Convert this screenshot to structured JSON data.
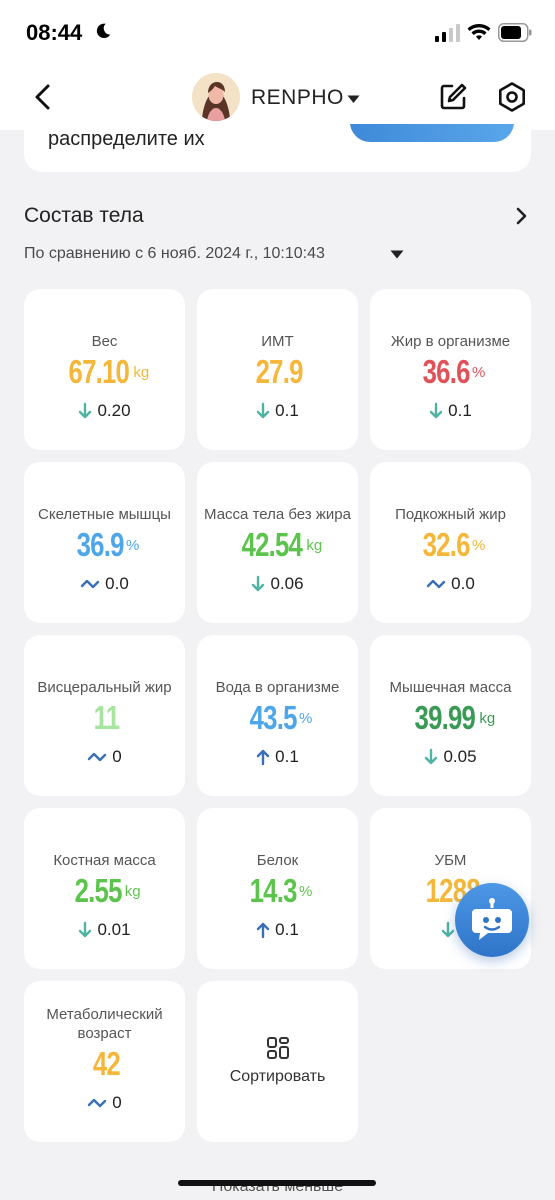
{
  "status_bar": {
    "time": "08:44"
  },
  "nav": {
    "user_name": "RENPHO"
  },
  "top_card": {
    "text": "распределите их"
  },
  "section": {
    "title": "Состав тела",
    "compare": "По сравнению с 6 нояб. 2024 г., 10:10:43"
  },
  "colors": {
    "yellow": "#f4b73a",
    "red": "#e0515a",
    "blue": "#4ea6ea",
    "green": "#5cc44c",
    "light_green": "#a6e4a0",
    "dark_green": "#3a9a55",
    "arrow_teal": "#4fb3a3",
    "arrow_blue": "#3a6fb7"
  },
  "metrics": [
    {
      "label": "Вес",
      "value": "67.10",
      "unit": "kg",
      "color": "#f4b73a",
      "change": "0.20",
      "trend": "down"
    },
    {
      "label": "ИМТ",
      "value": "27.9",
      "unit": "",
      "color": "#f4b73a",
      "change": "0.1",
      "trend": "down"
    },
    {
      "label": "Жир в организме",
      "value": "36.6",
      "unit": "%",
      "color": "#e0515a",
      "change": "0.1",
      "trend": "down"
    },
    {
      "label": "Скелетные мышцы",
      "value": "36.9",
      "unit": "%",
      "color": "#4ea6ea",
      "change": "0.0",
      "trend": "flat"
    },
    {
      "label": "Масса тела без жира",
      "value": "42.54",
      "unit": "kg",
      "color": "#5cc44c",
      "change": "0.06",
      "trend": "down"
    },
    {
      "label": "Подкожный жир",
      "value": "32.6",
      "unit": "%",
      "color": "#f4b73a",
      "change": "0.0",
      "trend": "flat"
    },
    {
      "label": "Висцеральный жир",
      "value": "11",
      "unit": "",
      "color": "#a6e4a0",
      "change": "0",
      "trend": "flat"
    },
    {
      "label": "Вода в организме",
      "value": "43.5",
      "unit": "%",
      "color": "#4ea6ea",
      "change": "0.1",
      "trend": "up"
    },
    {
      "label": "Мышечная масса",
      "value": "39.99",
      "unit": "kg",
      "color": "#3a9a55",
      "change": "0.05",
      "trend": "down"
    },
    {
      "label": "Костная масса",
      "value": "2.55",
      "unit": "kg",
      "color": "#5cc44c",
      "change": "0.01",
      "trend": "down"
    },
    {
      "label": "Белок",
      "value": "14.3",
      "unit": "%",
      "color": "#5cc44c",
      "change": "0.1",
      "trend": "up"
    },
    {
      "label": "УБМ",
      "value": "1288",
      "unit": "",
      "color": "#f4b73a",
      "change": "",
      "trend": "down"
    },
    {
      "label": "Метаболический возраст",
      "value": "42",
      "unit": "",
      "color": "#f4b73a",
      "change": "0",
      "trend": "flat"
    }
  ],
  "sort_card": {
    "label": "Сортировать"
  },
  "footer": {
    "show_less": "Показать меньше"
  }
}
